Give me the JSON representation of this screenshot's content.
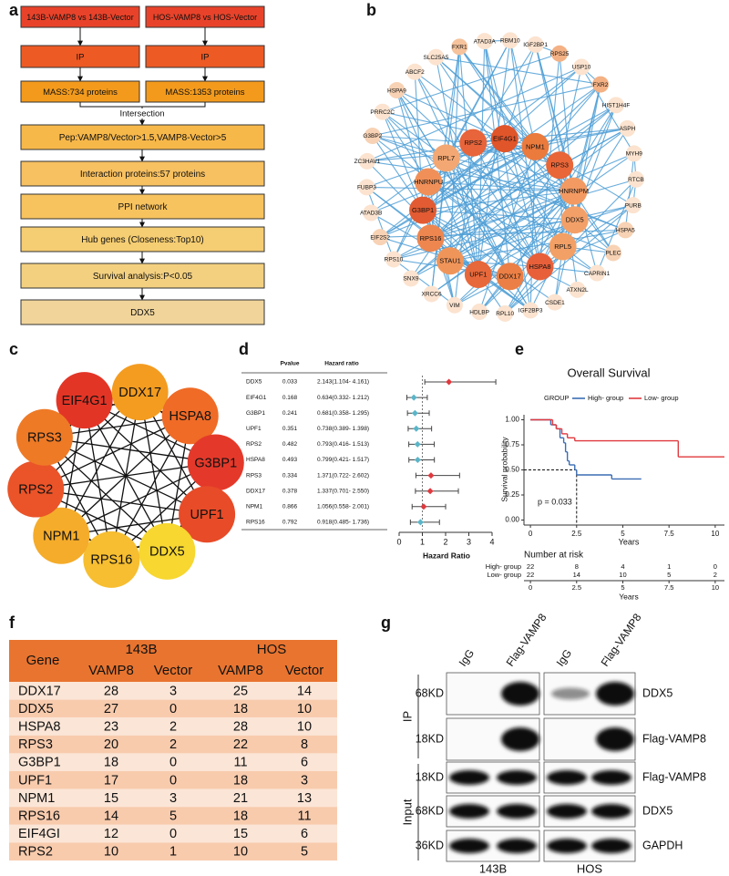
{
  "panel_labels": [
    "a",
    "b",
    "c",
    "d",
    "e",
    "f",
    "g"
  ],
  "flowchart": {
    "top": [
      "143B-VAMP8 vs 143B-Vector",
      "HOS-VAMP8 vs HOS-Vector"
    ],
    "ip": [
      "IP",
      "IP"
    ],
    "mass": [
      "MASS:734 proteins",
      "MASS:1353 proteins"
    ],
    "merge": "Intersection",
    "steps": [
      "Pep:VAMP8/Vector>1.5,VAMP8-Vector>5",
      "Interaction proteins:57 proteins",
      "PPI network",
      "Hub genes (Closeness:Top10)",
      "Survival analysis:P<0.05",
      "DDX5"
    ]
  },
  "network_b": {
    "inner": [
      {
        "label": "RPS2",
        "color": "#e8643a"
      },
      {
        "label": "EIF4G1",
        "color": "#e1552a"
      },
      {
        "label": "NPM1",
        "color": "#eb7a3d"
      },
      {
        "label": "RPS3",
        "color": "#e86638"
      },
      {
        "label": "HNRNPM",
        "color": "#f29a62"
      },
      {
        "label": "DDX5",
        "color": "#f3a068"
      },
      {
        "label": "RPL5",
        "color": "#f2a066"
      },
      {
        "label": "HSPA8",
        "color": "#e8603a"
      },
      {
        "label": "DDX17",
        "color": "#eb7f45"
      },
      {
        "label": "UPF1",
        "color": "#e7683b"
      },
      {
        "label": "STAU1",
        "color": "#f0955a"
      },
      {
        "label": "RPS16",
        "color": "#ee8650"
      },
      {
        "label": "G3BP1",
        "color": "#e25b32"
      },
      {
        "label": "HNRNPU",
        "color": "#f09058"
      },
      {
        "label": "RPL7",
        "color": "#f3a874"
      }
    ],
    "outer": [
      {
        "label": "FXR1",
        "color": "#f6c39c"
      },
      {
        "label": "ATAD3A",
        "color": "#fbe3cf"
      },
      {
        "label": "RBM10",
        "color": "#fbe3cf"
      },
      {
        "label": "IGF2BP1",
        "color": "#fbe3cf"
      },
      {
        "label": "RPS25",
        "color": "#f4b184"
      },
      {
        "label": "USP10",
        "color": "#fbe3cf"
      },
      {
        "label": "FXR2",
        "color": "#f4b184"
      },
      {
        "label": "HIST1H4F",
        "color": "#fbe3cf"
      },
      {
        "label": "ASPH",
        "color": "#fbe3cf"
      },
      {
        "label": "MYH9",
        "color": "#fbe3cf"
      },
      {
        "label": "RTCB",
        "color": "#fbe3cf"
      },
      {
        "label": "PURB",
        "color": "#fbe3cf"
      },
      {
        "label": "HSPA5",
        "color": "#f8d2b4"
      },
      {
        "label": "PLEC",
        "color": "#f8d2b4"
      },
      {
        "label": "CAPRIN1",
        "color": "#fbe3cf"
      },
      {
        "label": "ATXN2L",
        "color": "#fbe3cf"
      },
      {
        "label": "CSDE1",
        "color": "#fbe3cf"
      },
      {
        "label": "IGF2BP3",
        "color": "#fbe3cf"
      },
      {
        "label": "RPL10",
        "color": "#fbe3cf"
      },
      {
        "label": "HDLBP",
        "color": "#fbe3cf"
      },
      {
        "label": "VIM",
        "color": "#fbe3cf"
      },
      {
        "label": "XRCC6",
        "color": "#fbe3cf"
      },
      {
        "label": "SNX9",
        "color": "#fbe3cf"
      },
      {
        "label": "RPS10",
        "color": "#fbe3cf"
      },
      {
        "label": "EIF2S2",
        "color": "#f8d2b4"
      },
      {
        "label": "ATAD3B",
        "color": "#fbe3cf"
      },
      {
        "label": "FUBP3",
        "color": "#fbe3cf"
      },
      {
        "label": "ZC3HAV1",
        "color": "#fbe3cf"
      },
      {
        "label": "G3BP2",
        "color": "#f8d2b4"
      },
      {
        "label": "PRRC2C",
        "color": "#fbe3cf"
      },
      {
        "label": "HSPA9",
        "color": "#f8d2b4"
      },
      {
        "label": "ABCF2",
        "color": "#fbe3cf"
      },
      {
        "label": "SLC25A5",
        "color": "#fbe3cf"
      }
    ]
  },
  "network_c": [
    {
      "label": "EIF4G1",
      "color": "#e33526"
    },
    {
      "label": "DDX17",
      "color": "#f39c20"
    },
    {
      "label": "HSPA8",
      "color": "#ef6b26"
    },
    {
      "label": "G3BP1",
      "color": "#e4392a"
    },
    {
      "label": "UPF1",
      "color": "#e84b28"
    },
    {
      "label": "DDX5",
      "color": "#f7d730"
    },
    {
      "label": "RPS16",
      "color": "#f6be30"
    },
    {
      "label": "NPM1",
      "color": "#f5ac2a"
    },
    {
      "label": "RPS2",
      "color": "#ea5428"
    },
    {
      "label": "RPS3",
      "color": "#ee7a26"
    }
  ],
  "chart_data": [
    {
      "type": "forest",
      "columns": [
        "Pvalue",
        "Hazard ratio"
      ],
      "categories": [
        "DDX5",
        "EIF4G1",
        "G3BP1",
        "UPF1",
        "RPS2",
        "HSPA8",
        "RPS3",
        "DDX17",
        "NPM1",
        "RPS16"
      ],
      "pvalues": [
        0.033,
        0.168,
        0.241,
        0.351,
        0.482,
        0.493,
        0.334,
        0.378,
        0.866,
        0.792
      ],
      "values": [
        2.143,
        0.634,
        0.681,
        0.738,
        0.793,
        0.799,
        1.371,
        1.337,
        1.056,
        0.918
      ],
      "lower": [
        1.104,
        0.332,
        0.358,
        0.389,
        0.416,
        0.421,
        0.722,
        0.701,
        0.558,
        0.485
      ],
      "upper": [
        4.161,
        1.212,
        1.295,
        1.398,
        1.513,
        1.517,
        2.602,
        2.55,
        2.001,
        1.736
      ],
      "value_labels": [
        "2.143(1.104- 4.161)",
        "0.634(0.332- 1.212)",
        "0.681(0.358- 1.295)",
        "0.738(0.389- 1.398)",
        "0.793(0.416- 1.513)",
        "0.799(0.421- 1.517)",
        "1.371(0.722- 2.602)",
        "1.337(0.701- 2.550)",
        "1.056(0.558- 2.001)",
        "0.918(0.485- 1.736)"
      ],
      "colors": [
        "#e0393e",
        "#5bb5c8",
        "#5bb5c8",
        "#5bb5c8",
        "#5bb5c8",
        "#5bb5c8",
        "#e0393e",
        "#e0393e",
        "#e0393e",
        "#5bb5c8"
      ],
      "reference": 1,
      "xlabel": "Hazard Ratio",
      "xlim": [
        0,
        4
      ],
      "xticks": [
        0,
        1,
        2,
        3,
        4
      ]
    },
    {
      "type": "step",
      "title": "Overall Survival",
      "legend_title": "GROUP",
      "xlabel": "Years",
      "ylabel": "Survival probability",
      "annotation": "p = 0.033",
      "xlim": [
        -0.35,
        10.5
      ],
      "ylim": [
        -0.05,
        1.05
      ],
      "xticks": [
        0,
        2.5,
        5,
        7.5,
        10
      ],
      "yticks": [
        {
          "value": 0,
          "label": "0.00"
        },
        {
          "value": 0.25,
          "label": "0.25"
        },
        {
          "value": 0.5,
          "label": "0.50"
        },
        {
          "value": 0.75,
          "label": "0.75"
        },
        {
          "value": 1,
          "label": "1.00"
        }
      ],
      "median": {
        "x": 2.5,
        "y": 0.5
      },
      "series": [
        {
          "name": "High- group",
          "color": "#3b6db3",
          "x": [
            0,
            1.1,
            1.4,
            1.6,
            1.8,
            1.9,
            2.0,
            2.1,
            2.4,
            2.5,
            4.4,
            6.0
          ],
          "values": [
            1,
            0.95,
            0.91,
            0.82,
            0.77,
            0.68,
            0.59,
            0.55,
            0.5,
            0.45,
            0.41,
            0.41
          ]
        },
        {
          "name": "Low- group",
          "color": "#e0393e",
          "x": [
            0,
            1.2,
            1.4,
            1.7,
            2.0,
            2.4,
            8.0,
            10.5
          ],
          "values": [
            1,
            0.95,
            0.91,
            0.86,
            0.82,
            0.79,
            0.63,
            0.63
          ]
        }
      ],
      "risk_table": {
        "title": "Number at risk",
        "rows": [
          {
            "values": [
              22,
              8,
              4,
              1,
              0
            ]
          },
          {
            "values": [
              22,
              14,
              10,
              5,
              2
            ]
          }
        ]
      }
    }
  ],
  "table": {
    "header": [
      "Gene",
      "143B",
      "HOS"
    ],
    "subheader": [
      "VAMP8",
      "Vector",
      "VAMP8",
      "Vector"
    ],
    "rows": [
      [
        "DDX17",
        28,
        3,
        25,
        14
      ],
      [
        "DDX5",
        27,
        0,
        18,
        10
      ],
      [
        "HSPA8",
        23,
        2,
        28,
        10
      ],
      [
        "RPS3",
        20,
        2,
        22,
        8
      ],
      [
        "G3BP1",
        18,
        0,
        11,
        6
      ],
      [
        "UPF1",
        17,
        0,
        18,
        3
      ],
      [
        "NPM1",
        15,
        3,
        21,
        13
      ],
      [
        "RPS16",
        14,
        5,
        18,
        11
      ],
      [
        "EIF4GI",
        12,
        0,
        15,
        6
      ],
      [
        "RPS2",
        10,
        1,
        10,
        5
      ]
    ]
  },
  "blot": {
    "columns": [
      "IgG",
      "Flag-VAMP8",
      "IgG",
      "Flag-VAMP8"
    ],
    "groups": [
      "IP",
      "Input"
    ],
    "rows": [
      {
        "size": "68KD",
        "protein": "DDX5"
      },
      {
        "size": "18KD",
        "protein": "Flag-VAMP8"
      },
      {
        "size": "18KD",
        "protein": "Flag-VAMP8"
      },
      {
        "size": "68KD",
        "protein": "DDX5"
      },
      {
        "size": "36KD",
        "protein": "GAPDH"
      }
    ],
    "cells": [
      "143B",
      "HOS"
    ]
  }
}
